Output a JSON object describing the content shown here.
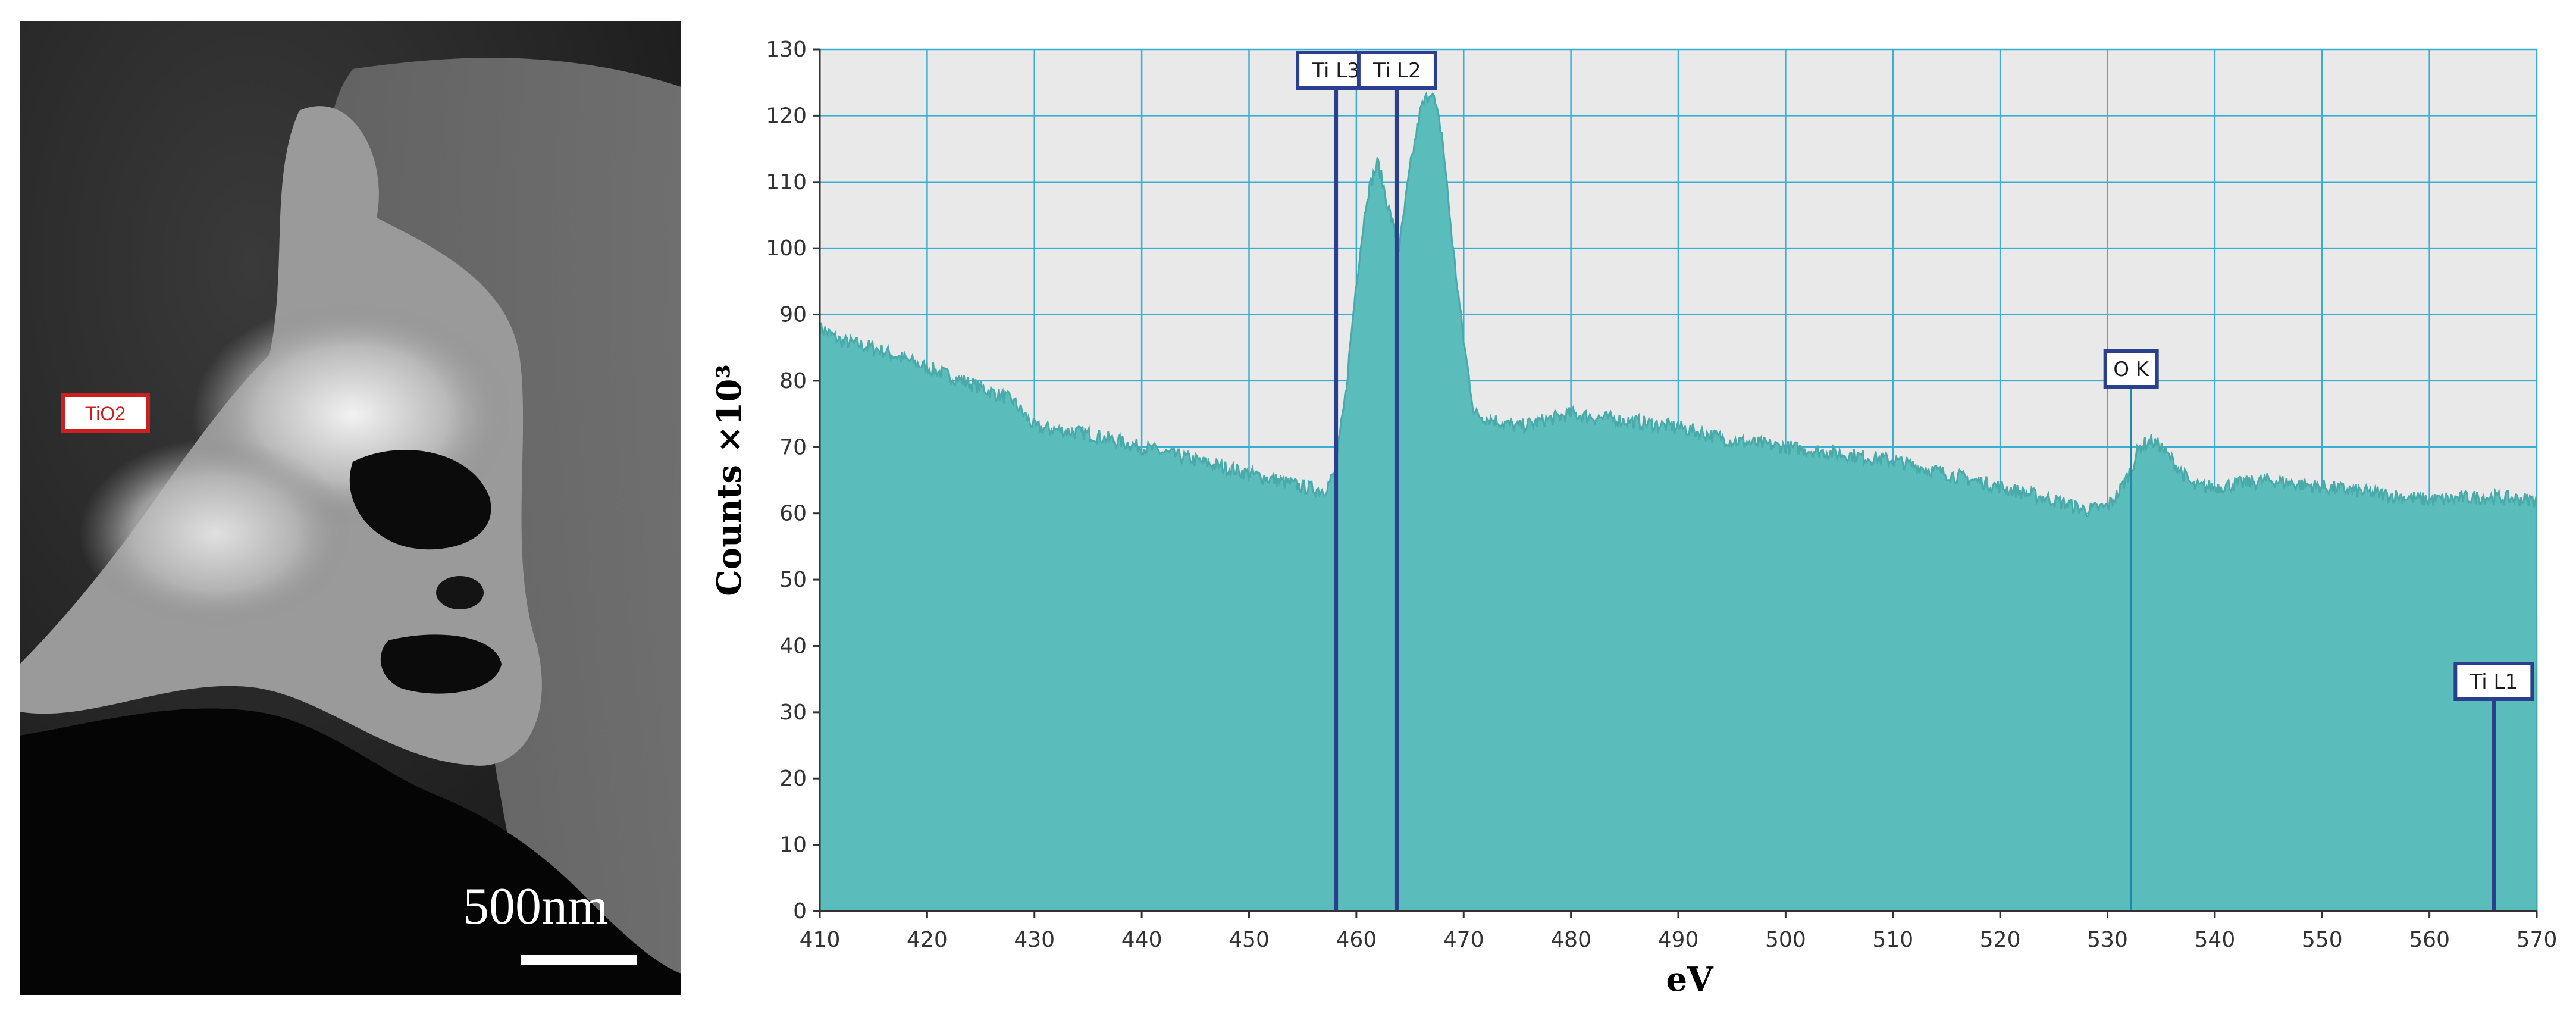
{
  "micrograph": {
    "region_label": "TiO2",
    "scale_bar_label": "500nm",
    "colors": {
      "frame": "#1b1b1b",
      "label_box": "#cc1f1f",
      "scale_bar": "#ffffff"
    }
  },
  "chart_data": {
    "type": "area",
    "title": "",
    "xlabel": "eV",
    "ylabel": "Counts ×10³",
    "xlim": [
      410,
      570
    ],
    "ylim": [
      0,
      130
    ],
    "x_ticks": [
      410,
      420,
      430,
      440,
      450,
      460,
      470,
      480,
      490,
      500,
      510,
      520,
      530,
      540,
      550,
      560,
      570
    ],
    "y_ticks": [
      0,
      10,
      20,
      30,
      40,
      50,
      60,
      70,
      80,
      90,
      100,
      110,
      120,
      130
    ],
    "grid": true,
    "legend": "none",
    "colors": {
      "fill": "#5bbcbc",
      "plot_bg": "#e9e9e9",
      "grid": "#3aaed0",
      "marker": "#2b3f8f",
      "marker_thin": "#1f8aa8"
    },
    "series": [
      {
        "x": [
          410,
          412,
          415,
          420,
          425,
          428,
          430,
          435,
          440,
          445,
          450,
          455,
          457,
          458,
          459,
          460,
          461,
          462,
          463,
          464,
          465,
          466,
          467,
          468,
          469,
          470,
          471,
          473,
          475,
          480,
          485,
          490,
          495,
          500,
          505,
          510,
          515,
          520,
          525,
          528,
          530,
          531,
          532,
          533,
          534,
          535,
          536,
          538,
          540,
          545,
          550,
          555,
          560,
          565,
          570
        ],
        "values": [
          88,
          86,
          85,
          82,
          79,
          77,
          73,
          72,
          70,
          68,
          66,
          64,
          63.5,
          66,
          78,
          95,
          108,
          113,
          106,
          100,
          112,
          121,
          124,
          117,
          100,
          86,
          75,
          74,
          73,
          75,
          74,
          73,
          71,
          70,
          69,
          68,
          66,
          64,
          62,
          60.5,
          61,
          63,
          66,
          70,
          71,
          70,
          68,
          64,
          64,
          65,
          64,
          63,
          62,
          62.5,
          62
        ]
      }
    ],
    "edge_markers": [
      {
        "label": "Ti L3",
        "x": 458.1,
        "style": "bold"
      },
      {
        "label": "Ti L2",
        "x": 463.8,
        "style": "bold"
      },
      {
        "label": "O K",
        "x": 532.2,
        "style": "thin"
      },
      {
        "label": "Ti L1",
        "x": 566.0,
        "style": "bold"
      }
    ]
  }
}
